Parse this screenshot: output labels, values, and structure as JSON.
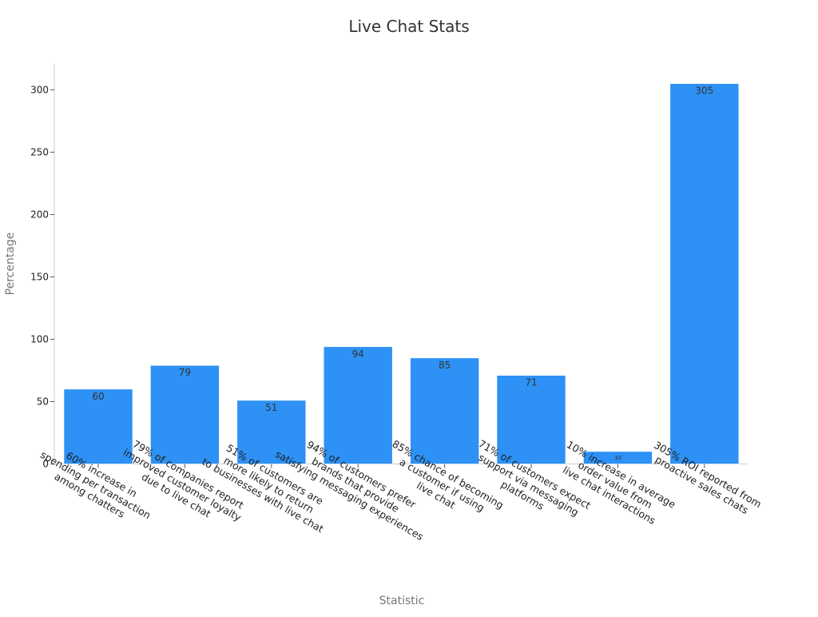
{
  "chart_data": {
    "type": "bar",
    "title": "Live Chat Stats",
    "xlabel": "Statistic",
    "ylabel": "Percentage",
    "ylim": [
      0,
      320
    ],
    "yticks": [
      0,
      50,
      100,
      150,
      200,
      250,
      300
    ],
    "grid": false,
    "categories": [
      "60% increase in spending per transaction among chatters",
      "79% of companies report improved customer loyalty due to live chat",
      "51% of customers are more likely to return to businesses with live chat",
      "94% of customers prefer brands that provide satisfying messaging experiences",
      "85% chance of becoming a customer if using live chat",
      "71% of customers expect support via messaging platforms",
      "10% increase in average order value from live chat interactions",
      "305% ROI reported from proactive sales chats"
    ],
    "category_lines": [
      [
        "60% increase in",
        "spending per transaction",
        "among chatters"
      ],
      [
        "79% of companies report",
        "improved customer loyalty",
        "due to live chat"
      ],
      [
        "51% of customers are",
        "more likely to return",
        "to businesses with live chat"
      ],
      [
        "94% of customers prefer",
        "brands that provide",
        "satisfying messaging experiences"
      ],
      [
        "85% chance of becoming",
        "a customer if using",
        "live chat"
      ],
      [
        "71% of customers expect",
        "support via messaging",
        "platforms"
      ],
      [
        "10% increase in average",
        "order value from",
        "live chat interactions"
      ],
      [
        "305% ROI reported from",
        "proactive sales chats"
      ]
    ],
    "values": [
      60,
      79,
      51,
      94,
      85,
      71,
      10,
      305
    ],
    "data_labels": [
      "60",
      "79",
      "51",
      "94",
      "85",
      "71",
      "10",
      "305"
    ],
    "bar_color": "#2d91f5"
  }
}
